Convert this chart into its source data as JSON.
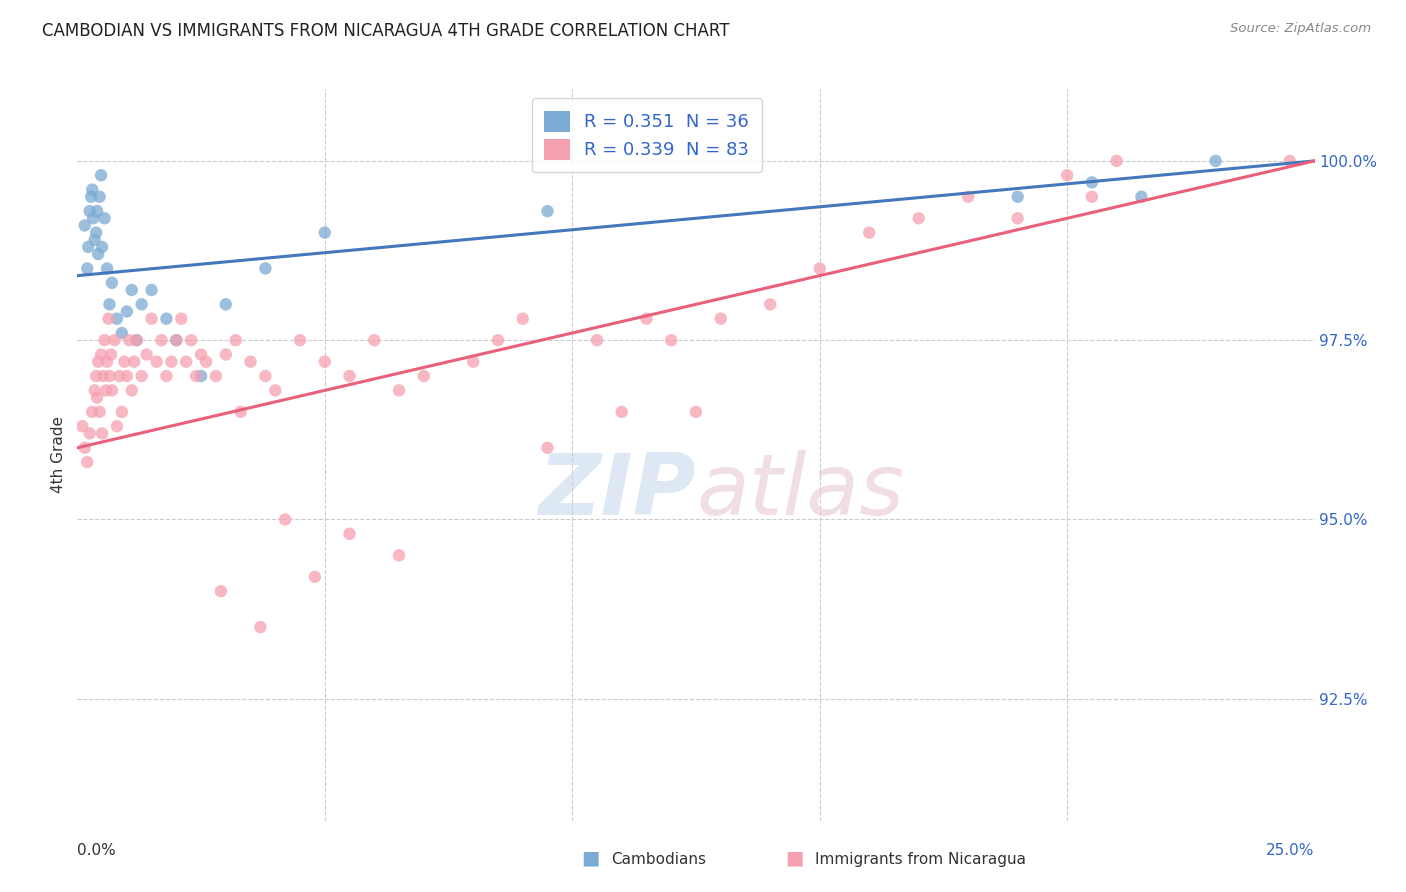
{
  "title": "CAMBODIAN VS IMMIGRANTS FROM NICARAGUA 4TH GRADE CORRELATION CHART",
  "source": "Source: ZipAtlas.com",
  "ylabel": "4th Grade",
  "xmin": 0.0,
  "xmax": 25.0,
  "ymin": 90.8,
  "ymax": 101.0,
  "cambodian_R": 0.351,
  "cambodian_N": 36,
  "nicaragua_R": 0.339,
  "nicaragua_N": 83,
  "cambodian_color": "#7baad4",
  "nicaragua_color": "#f5a0b0",
  "trendline_cambodian_color": "#4477bb",
  "trendline_nicaragua_color": "#e8607a",
  "background_color": "#ffffff",
  "legend_label_1": "Cambodians",
  "legend_label_2": "Immigrants from Nicaragua",
  "ytick_positions": [
    92.5,
    95.0,
    97.5,
    100.0
  ],
  "ytick_labels": [
    "92.5%",
    "95.0%",
    "97.5%",
    "100.0%"
  ],
  "xtick_positions": [
    0,
    5,
    10,
    15,
    20,
    25
  ],
  "cam_trend_x0": 0.0,
  "cam_trend_y0": 98.4,
  "cam_trend_x1": 25.0,
  "cam_trend_y1": 100.0,
  "nic_trend_x0": 0.0,
  "nic_trend_y0": 96.0,
  "nic_trend_x1": 25.0,
  "nic_trend_y1": 100.0,
  "cam_x": [
    0.15,
    0.2,
    0.22,
    0.25,
    0.28,
    0.3,
    0.32,
    0.35,
    0.38,
    0.4,
    0.42,
    0.45,
    0.48,
    0.5,
    0.55,
    0.6,
    0.65,
    0.7,
    0.8,
    0.9,
    1.0,
    1.1,
    1.2,
    1.3,
    1.5,
    1.8,
    2.0,
    2.5,
    3.0,
    3.8,
    5.0,
    9.5,
    19.0,
    20.5,
    21.5,
    23.0
  ],
  "cam_y": [
    99.1,
    98.5,
    98.8,
    99.3,
    99.5,
    99.6,
    99.2,
    98.9,
    99.0,
    99.3,
    98.7,
    99.5,
    99.8,
    98.8,
    99.2,
    98.5,
    98.0,
    98.3,
    97.8,
    97.6,
    97.9,
    98.2,
    97.5,
    98.0,
    98.2,
    97.8,
    97.5,
    97.0,
    98.0,
    98.5,
    99.0,
    99.3,
    99.5,
    99.7,
    99.5,
    100.0
  ],
  "nic_x": [
    0.1,
    0.15,
    0.2,
    0.25,
    0.3,
    0.35,
    0.38,
    0.4,
    0.42,
    0.45,
    0.48,
    0.5,
    0.52,
    0.55,
    0.58,
    0.6,
    0.63,
    0.65,
    0.68,
    0.7,
    0.75,
    0.8,
    0.85,
    0.9,
    0.95,
    1.0,
    1.05,
    1.1,
    1.15,
    1.2,
    1.3,
    1.4,
    1.5,
    1.6,
    1.7,
    1.8,
    1.9,
    2.0,
    2.1,
    2.2,
    2.3,
    2.4,
    2.5,
    2.6,
    2.8,
    3.0,
    3.2,
    3.5,
    3.8,
    4.0,
    4.5,
    5.0,
    5.5,
    6.0,
    6.5,
    7.0,
    8.0,
    8.5,
    9.0,
    10.5,
    11.5,
    12.0,
    13.0,
    14.0,
    15.0,
    16.0,
    17.0,
    18.0,
    19.0,
    20.0,
    20.5,
    21.0,
    11.0,
    12.5,
    24.5,
    5.5,
    6.5,
    9.5,
    3.3,
    4.2,
    3.7,
    2.9,
    4.8
  ],
  "nic_y": [
    96.3,
    96.0,
    95.8,
    96.2,
    96.5,
    96.8,
    97.0,
    96.7,
    97.2,
    96.5,
    97.3,
    96.2,
    97.0,
    97.5,
    96.8,
    97.2,
    97.8,
    97.0,
    97.3,
    96.8,
    97.5,
    96.3,
    97.0,
    96.5,
    97.2,
    97.0,
    97.5,
    96.8,
    97.2,
    97.5,
    97.0,
    97.3,
    97.8,
    97.2,
    97.5,
    97.0,
    97.2,
    97.5,
    97.8,
    97.2,
    97.5,
    97.0,
    97.3,
    97.2,
    97.0,
    97.3,
    97.5,
    97.2,
    97.0,
    96.8,
    97.5,
    97.2,
    97.0,
    97.5,
    96.8,
    97.0,
    97.2,
    97.5,
    97.8,
    97.5,
    97.8,
    97.5,
    97.8,
    98.0,
    98.5,
    99.0,
    99.2,
    99.5,
    99.2,
    99.8,
    99.5,
    100.0,
    96.5,
    96.5,
    100.0,
    94.8,
    94.5,
    96.0,
    96.5,
    95.0,
    93.5,
    94.0,
    94.2
  ]
}
